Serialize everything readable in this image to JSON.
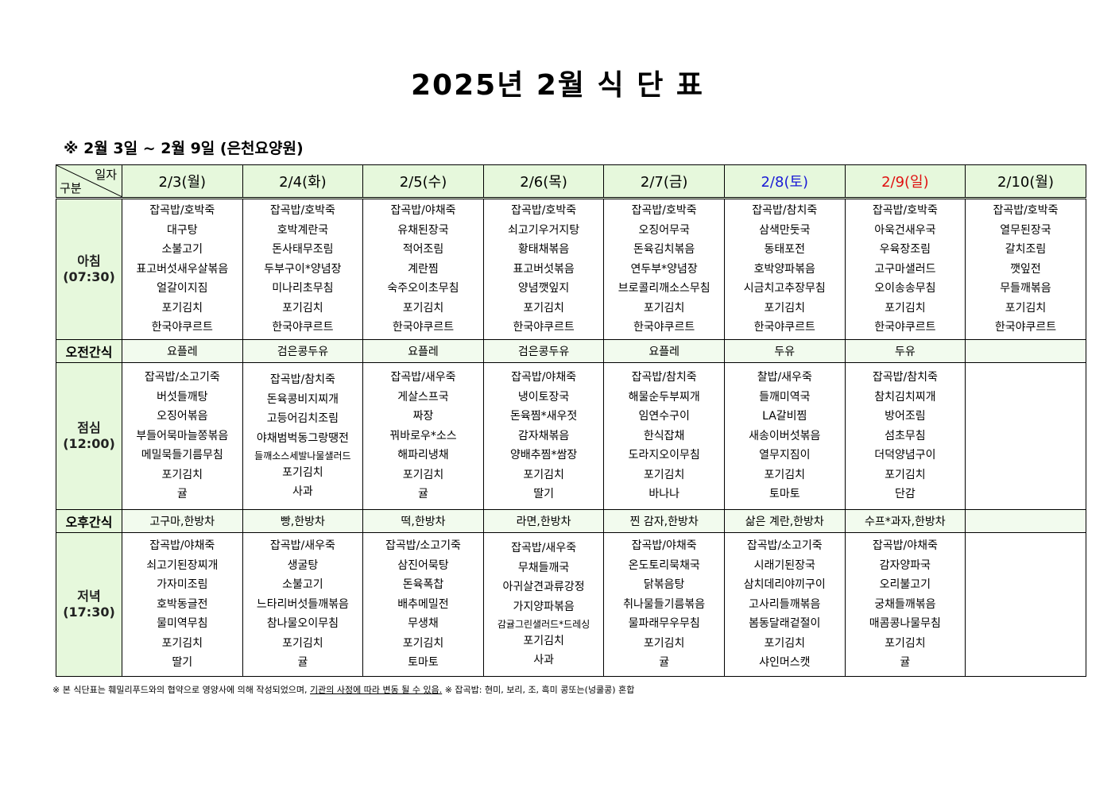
{
  "title": "2025년 2월 식 단 표",
  "subtitle": "※  2월 3일 ~ 2월 9일 (은천요양원)",
  "corner": {
    "top": "일자",
    "bottom": "구분"
  },
  "colors": {
    "header_bg": "#e6f8dc",
    "saturday": "#1a1ad6",
    "sunday": "#e01010"
  },
  "days": [
    {
      "label": "2/3(월)",
      "color": "#000000"
    },
    {
      "label": "2/4(화)",
      "color": "#000000"
    },
    {
      "label": "2/5(수)",
      "color": "#000000"
    },
    {
      "label": "2/6(목)",
      "color": "#000000"
    },
    {
      "label": "2/7(금)",
      "color": "#000000"
    },
    {
      "label": "2/8(토)",
      "color": "#1a1ad6"
    },
    {
      "label": "2/9(일)",
      "color": "#e01010"
    },
    {
      "label": "2/10(월)",
      "color": "#000000"
    }
  ],
  "rows": [
    {
      "type": "meal",
      "label": "아침",
      "time": "(07:30)",
      "cells": [
        [
          "잡곡밥/호박죽",
          "대구탕",
          "소불고기",
          "표고버섯새우살볶음",
          "얼갈이지짐",
          "포기김치",
          "한국야쿠르트"
        ],
        [
          "잡곡밥/호박죽",
          "호박계란국",
          "돈사태무조림",
          "두부구이*양념장",
          "미나리초무침",
          "포기김치",
          "한국야쿠르트"
        ],
        [
          "잡곡밥/야채죽",
          "유채된장국",
          "적어조림",
          "계란찜",
          "숙주오이초무침",
          "포기김치",
          "한국야쿠르트"
        ],
        [
          "잡곡밥/호박죽",
          "쇠고기우거지탕",
          "황태채볶음",
          "표고버섯볶음",
          "양념깻잎지",
          "포기김치",
          "한국야쿠르트"
        ],
        [
          "잡곡밥/호박죽",
          "오징어무국",
          "돈육김치볶음",
          "연두부*양념장",
          "브로콜리깨소스무침",
          "포기김치",
          "한국야쿠르트"
        ],
        [
          "잡곡밥/참치죽",
          "삼색만둣국",
          "동태포전",
          "호박양파볶음",
          "시금치고추장무침",
          "포기김치",
          "한국야쿠르트"
        ],
        [
          "잡곡밥/호박죽",
          "아욱건새우국",
          "우육장조림",
          "고구마샐러드",
          "오이송송무침",
          "포기김치",
          "한국야쿠르트"
        ],
        [
          "잡곡밥/호박죽",
          "열무된장국",
          "갈치조림",
          "깻잎전",
          "무들깨볶음",
          "포기김치",
          "한국야쿠르트"
        ]
      ]
    },
    {
      "type": "snack",
      "label": "오전간식",
      "cells": [
        "요플레",
        "검은콩두유",
        "요플레",
        "검은콩두유",
        "요플레",
        "두유",
        "두유",
        ""
      ]
    },
    {
      "type": "meal",
      "label": "점심",
      "time": "(12:00)",
      "cells": [
        [
          "잡곡밥/소고기죽",
          "버섯들깨탕",
          "오징어볶음",
          "부들어묵마늘쫑볶음",
          "메밀묵들기름무침",
          "포기김치",
          "귤"
        ],
        [
          "잡곡밥/참치죽",
          "돈육콩비지찌개",
          "고등어김치조림",
          "야채범벅동그랑땡전",
          "들깨소스세발나물샐러드",
          "포기김치",
          "사과"
        ],
        [
          "잡곡밥/새우죽",
          "게살스프국",
          "짜장",
          "꿔바로우*소스",
          "해파리냉채",
          "포기김치",
          "귤"
        ],
        [
          "잡곡밥/야채죽",
          "냉이토장국",
          "돈육찜*새우젓",
          "감자채볶음",
          "양배추찜*쌈장",
          "포기김치",
          "딸기"
        ],
        [
          "잡곡밥/참치죽",
          "해물순두부찌개",
          "임연수구이",
          "한식잡채",
          "도라지오이무침",
          "포기김치",
          "바나나"
        ],
        [
          "찰밥/새우죽",
          "들깨미역국",
          "LA갈비찜",
          "새송이버섯볶음",
          "열무지짐이",
          "포기김치",
          "토마토"
        ],
        [
          "잡곡밥/참치죽",
          "참치김치찌개",
          "방어조림",
          "섬초무침",
          "더덕양념구이",
          "포기김치",
          "단감"
        ],
        []
      ]
    },
    {
      "type": "snack",
      "label": "오후간식",
      "cells": [
        "고구마,한방차",
        "빵,한방차",
        "떡,한방차",
        "라면,한방차",
        "찐  감자,한방차",
        "삶은  계란,한방차",
        "수프*과자,한방차",
        ""
      ]
    },
    {
      "type": "meal",
      "label": "저녁",
      "time": "(17:30)",
      "cells": [
        [
          "잡곡밥/야채죽",
          "쇠고기된장찌개",
          "가자미조림",
          "호박동글전",
          "물미역무침",
          "포기김치",
          "딸기"
        ],
        [
          "잡곡밥/새우죽",
          "생굴탕",
          "소불고기",
          "느타리버섯들깨볶음",
          "참나물오이무침",
          "포기김치",
          "귤"
        ],
        [
          "잡곡밥/소고기죽",
          "삼진어묵탕",
          "돈육폭찹",
          "배추메밀전",
          "무생채",
          "포기김치",
          "토마토"
        ],
        [
          "잡곡밥/새우죽",
          "무채들깨국",
          "아귀살견과류강정",
          "가지양파볶음",
          "감귤그린샐러드*드레싱",
          "포기김치",
          "사과"
        ],
        [
          "잡곡밥/야채죽",
          "온도토리묵채국",
          "닭볶음탕",
          "취나물들기름볶음",
          "물파래무우무침",
          "포기김치",
          "귤"
        ],
        [
          "잡곡밥/소고기죽",
          "시래기된장국",
          "삼치데리야끼구이",
          "고사리들깨볶음",
          "봄동달래겉절이",
          "포기김치",
          "샤인머스캣"
        ],
        [
          "잡곡밥/야채죽",
          "감자양파국",
          "오리불고기",
          "궁채들깨볶음",
          "매콤콩나물무침",
          "포기김치",
          "귤"
        ],
        []
      ]
    }
  ],
  "footnote": {
    "part1": "※  본  식단표는  훼밀리푸드와의  협약으로  영양사에  의해  작성되었으며, ",
    "underlined": "기관의  사정에  따라  변동  될  수  있음.",
    "part2": "  ※  잡곡밥:  현미,  보리,  조,  흑미  콩또는(넝쿨콩)  혼합"
  }
}
